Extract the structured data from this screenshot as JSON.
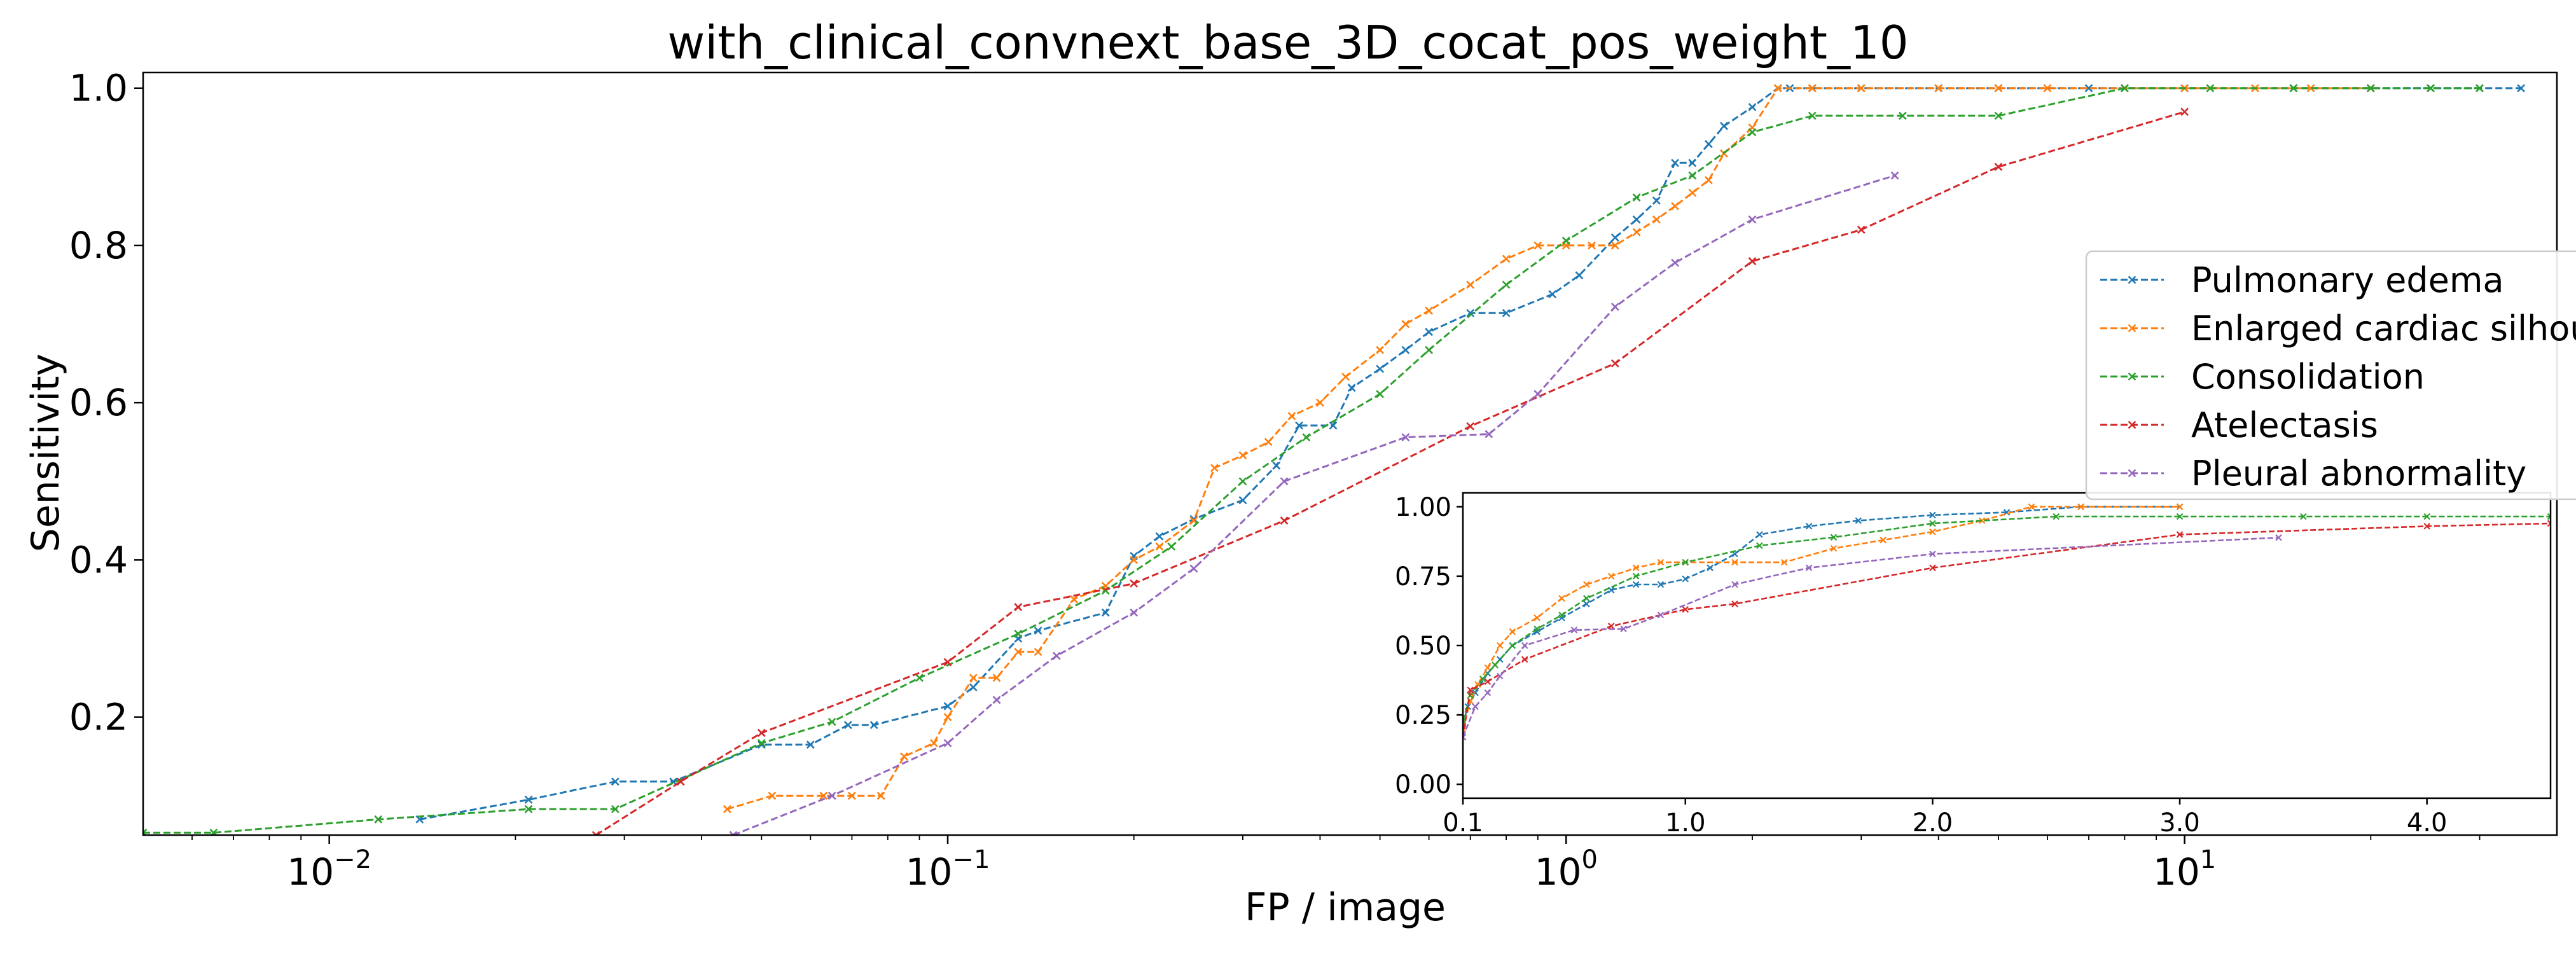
{
  "chart_data": [
    {
      "type": "line",
      "title": "with_clinical_convnext_base_3D_cocat_pos_weight_10",
      "xlabel": "FP / image",
      "ylabel": "Sensitivity",
      "xscale": "log",
      "xlim": [
        0.005,
        40
      ],
      "ylim": [
        0.05,
        1.02
      ],
      "xticks": [
        {
          "value": 0.01,
          "base": "10",
          "exp": "−2"
        },
        {
          "value": 0.1,
          "base": "10",
          "exp": "−1"
        },
        {
          "value": 1,
          "base": "10",
          "exp": "0"
        },
        {
          "value": 10,
          "base": "10",
          "exp": "1"
        }
      ],
      "yticks": [
        {
          "value": 0.2,
          "label": "0.2"
        },
        {
          "value": 0.4,
          "label": "0.4"
        },
        {
          "value": 0.6,
          "label": "0.6"
        },
        {
          "value": 0.8,
          "label": "0.8"
        },
        {
          "value": 1.0,
          "label": "1.0"
        }
      ],
      "grid": false,
      "legend_position": "right",
      "series": [
        {
          "name": "Pulmonary edema",
          "color": "#1f77b4",
          "x": [
            0.014,
            0.021,
            0.029,
            0.036,
            0.05,
            0.06,
            0.069,
            0.076,
            0.1,
            0.11,
            0.13,
            0.14,
            0.18,
            0.2,
            0.22,
            0.25,
            0.3,
            0.34,
            0.37,
            0.42,
            0.45,
            0.5,
            0.55,
            0.6,
            0.7,
            0.8,
            0.95,
            1.05,
            1.2,
            1.3,
            1.4,
            1.5,
            1.6,
            1.7,
            1.8,
            2.0,
            2.2,
            2.3,
            2.5,
            3,
            4,
            5,
            7,
            10,
            15,
            25,
            35
          ],
          "y": [
            0.07,
            0.095,
            0.118,
            0.118,
            0.165,
            0.165,
            0.19,
            0.19,
            0.214,
            0.238,
            0.3,
            0.31,
            0.333,
            0.405,
            0.43,
            0.452,
            0.476,
            0.52,
            0.571,
            0.571,
            0.619,
            0.643,
            0.667,
            0.69,
            0.714,
            0.714,
            0.738,
            0.762,
            0.81,
            0.833,
            0.857,
            0.905,
            0.905,
            0.929,
            0.952,
            0.976,
            1.0,
            1.0,
            1.0,
            1.0,
            1.0,
            1.0,
            1.0,
            1.0,
            1.0,
            1.0,
            1.0
          ]
        },
        {
          "name": "Enlarged cardiac silhouette",
          "color": "#ff7f0e",
          "x": [
            0.044,
            0.052,
            0.063,
            0.07,
            0.078,
            0.085,
            0.095,
            0.1,
            0.11,
            0.12,
            0.13,
            0.14,
            0.16,
            0.18,
            0.2,
            0.22,
            0.25,
            0.27,
            0.3,
            0.33,
            0.36,
            0.4,
            0.44,
            0.5,
            0.55,
            0.6,
            0.7,
            0.8,
            0.9,
            1.0,
            1.1,
            1.2,
            1.3,
            1.4,
            1.5,
            1.6,
            1.7,
            1.8,
            2.0,
            2.2,
            2.5,
            3,
            4,
            5,
            6,
            8,
            10,
            13,
            16,
            20
          ],
          "y": [
            0.083,
            0.1,
            0.1,
            0.1,
            0.1,
            0.15,
            0.167,
            0.2,
            0.25,
            0.25,
            0.283,
            0.283,
            0.35,
            0.367,
            0.4,
            0.417,
            0.45,
            0.517,
            0.533,
            0.55,
            0.583,
            0.6,
            0.633,
            0.667,
            0.7,
            0.717,
            0.75,
            0.783,
            0.8,
            0.8,
            0.8,
            0.8,
            0.817,
            0.833,
            0.85,
            0.867,
            0.883,
            0.917,
            0.95,
            1.0,
            1.0,
            1.0,
            1.0,
            1.0,
            1.0,
            1.0,
            1.0,
            1.0,
            1.0,
            1.0
          ]
        },
        {
          "name": "Consolidation",
          "color": "#2ca02c",
          "x": [
            0.005,
            0.0065,
            0.012,
            0.021,
            0.029,
            0.05,
            0.065,
            0.09,
            0.13,
            0.18,
            0.23,
            0.3,
            0.38,
            0.5,
            0.6,
            0.8,
            1.0,
            1.3,
            1.6,
            2.0,
            2.5,
            3.5,
            5,
            8,
            11,
            15,
            20,
            25,
            30
          ],
          "y": [
            0.053,
            0.053,
            0.07,
            0.083,
            0.083,
            0.167,
            0.194,
            0.25,
            0.306,
            0.361,
            0.417,
            0.5,
            0.556,
            0.611,
            0.667,
            0.75,
            0.806,
            0.861,
            0.889,
            0.944,
            0.965,
            0.965,
            0.965,
            1.0,
            1.0,
            1.0,
            1.0,
            1.0,
            1.0
          ]
        },
        {
          "name": "Atelectasis",
          "color": "#d62728",
          "x": [
            0.027,
            0.037,
            0.05,
            0.1,
            0.13,
            0.2,
            0.35,
            0.7,
            1.2,
            2.0,
            3.0,
            5.0,
            10
          ],
          "y": [
            0.05,
            0.118,
            0.18,
            0.27,
            0.34,
            0.37,
            0.45,
            0.57,
            0.65,
            0.78,
            0.82,
            0.9,
            0.97
          ]
        },
        {
          "name": "Pleural abnormality",
          "color": "#9467bd",
          "x": [
            0.045,
            0.065,
            0.1,
            0.12,
            0.15,
            0.2,
            0.25,
            0.35,
            0.55,
            0.75,
            0.9,
            1.2,
            1.5,
            2.0,
            3.4
          ],
          "y": [
            0.05,
            0.1,
            0.167,
            0.222,
            0.278,
            0.333,
            0.389,
            0.5,
            0.556,
            0.56,
            0.611,
            0.722,
            0.778,
            0.833,
            0.889
          ]
        }
      ]
    },
    {
      "type": "line",
      "title": "",
      "xlabel": "",
      "ylabel": "",
      "xscale": "linear",
      "xlim": [
        0.1,
        4.5
      ],
      "ylim": [
        -0.05,
        1.05
      ],
      "xticks": [
        {
          "value": 0.1,
          "label": "0.1"
        },
        {
          "value": 1.0,
          "label": "1.0"
        },
        {
          "value": 2.0,
          "label": "2.0"
        },
        {
          "value": 3.0,
          "label": "3.0"
        },
        {
          "value": 4.0,
          "label": "4.0"
        }
      ],
      "yticks": [
        {
          "value": 0.0,
          "label": "0.00"
        },
        {
          "value": 0.25,
          "label": "0.25"
        },
        {
          "value": 0.5,
          "label": "0.50"
        },
        {
          "value": 0.75,
          "label": "0.75"
        },
        {
          "value": 1.0,
          "label": "1.00"
        }
      ],
      "grid": false,
      "series": [
        {
          "name": "Pulmonary edema",
          "color": "#1f77b4",
          "x": [
            0.1,
            0.12,
            0.15,
            0.2,
            0.25,
            0.3,
            0.4,
            0.5,
            0.6,
            0.7,
            0.8,
            0.9,
            1.0,
            1.1,
            1.2,
            1.3,
            1.5,
            1.7,
            2.0,
            2.3,
            2.6,
            3.0
          ],
          "y": [
            0.22,
            0.28,
            0.33,
            0.4,
            0.45,
            0.5,
            0.55,
            0.6,
            0.65,
            0.7,
            0.72,
            0.72,
            0.74,
            0.78,
            0.83,
            0.9,
            0.93,
            0.95,
            0.97,
            0.98,
            1.0,
            1.0
          ]
        },
        {
          "name": "Enlarged cardiac silhouette",
          "color": "#ff7f0e",
          "x": [
            0.1,
            0.13,
            0.16,
            0.2,
            0.25,
            0.3,
            0.4,
            0.5,
            0.6,
            0.7,
            0.8,
            0.9,
            1.0,
            1.2,
            1.4,
            1.6,
            1.8,
            2.0,
            2.2,
            2.4,
            2.6,
            3.0
          ],
          "y": [
            0.2,
            0.3,
            0.36,
            0.42,
            0.5,
            0.55,
            0.6,
            0.67,
            0.72,
            0.75,
            0.78,
            0.8,
            0.8,
            0.8,
            0.8,
            0.85,
            0.88,
            0.91,
            0.95,
            1.0,
            1.0,
            1.0
          ]
        },
        {
          "name": "Consolidation",
          "color": "#2ca02c",
          "x": [
            0.1,
            0.13,
            0.18,
            0.23,
            0.3,
            0.4,
            0.5,
            0.6,
            0.8,
            1.0,
            1.3,
            1.6,
            2.0,
            2.5,
            3.0,
            3.5,
            4.0,
            4.5
          ],
          "y": [
            0.23,
            0.32,
            0.38,
            0.43,
            0.5,
            0.56,
            0.61,
            0.67,
            0.75,
            0.8,
            0.86,
            0.89,
            0.94,
            0.965,
            0.965,
            0.965,
            0.965,
            0.965
          ]
        },
        {
          "name": "Atelectasis",
          "color": "#d62728",
          "x": [
            0.1,
            0.13,
            0.2,
            0.35,
            0.7,
            1.0,
            1.2,
            2.0,
            3.0,
            4.0,
            4.5
          ],
          "y": [
            0.17,
            0.34,
            0.37,
            0.45,
            0.57,
            0.63,
            0.65,
            0.78,
            0.9,
            0.93,
            0.94
          ]
        },
        {
          "name": "Pleural abnormality",
          "color": "#9467bd",
          "x": [
            0.1,
            0.15,
            0.2,
            0.25,
            0.35,
            0.55,
            0.75,
            0.9,
            1.2,
            1.5,
            2.0,
            3.4
          ],
          "y": [
            0.17,
            0.28,
            0.33,
            0.39,
            0.5,
            0.556,
            0.56,
            0.61,
            0.72,
            0.78,
            0.83,
            0.889
          ]
        }
      ]
    }
  ]
}
